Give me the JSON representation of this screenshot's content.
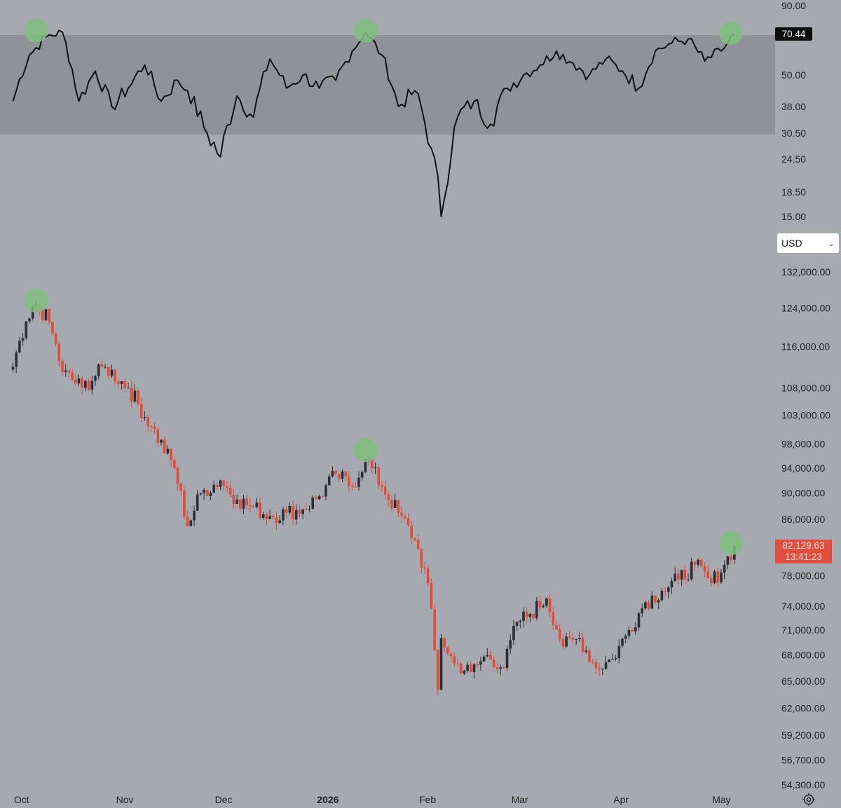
{
  "currency_select": {
    "value": "USD"
  },
  "rsi_badge": "70.44",
  "price_badge": {
    "price": "82,129.63",
    "countdown": "13:41:23"
  },
  "colors": {
    "background": "#a7a9b0",
    "rsi_band": "#8f9299",
    "rsi_line": "#111111",
    "candle_up": "#2b2e35",
    "candle_down": "#e04b3a",
    "highlight_circle": "#7fbf7f"
  },
  "icons": {
    "settings": "gear-icon",
    "dropdown": "chevron-down-icon"
  },
  "chart_data": [
    {
      "type": "line",
      "title": "",
      "ylim": [
        15,
        90
      ],
      "y_ticks": [
        "90.00",
        "50.00",
        "38.00",
        "30.50",
        "24.50",
        "18.50",
        "15.00"
      ],
      "band": [
        30.5,
        70
      ],
      "grid": false,
      "x_start": "2025-09-29",
      "x": [
        "2025-09-29",
        "2025-10-04",
        "2025-10-09",
        "2025-10-14",
        "2025-10-19",
        "2025-10-24",
        "2025-10-29",
        "2025-11-03",
        "2025-11-08",
        "2025-11-13",
        "2025-11-18",
        "2025-11-21",
        "2025-11-26",
        "2025-12-01",
        "2025-12-06",
        "2025-12-11",
        "2025-12-16",
        "2025-12-21",
        "2025-12-26",
        "2025-12-31",
        "2026-01-05",
        "2026-01-10",
        "2026-01-14",
        "2026-01-19",
        "2026-01-24",
        "2026-01-29",
        "2026-02-03",
        "2026-02-06",
        "2026-02-11",
        "2026-02-16",
        "2026-02-21",
        "2026-02-26",
        "2026-03-03",
        "2026-03-08",
        "2026-03-13",
        "2026-03-18",
        "2026-03-23",
        "2026-03-28",
        "2026-04-02",
        "2026-04-07",
        "2026-04-12",
        "2026-04-17",
        "2026-04-22",
        "2026-04-27",
        "2026-05-02",
        "2026-05-06"
      ],
      "series": [
        {
          "values": [
            40,
            60,
            69,
            72,
            40,
            52,
            38,
            45,
            55,
            40,
            48,
            44,
            32,
            25,
            42,
            35,
            58,
            45,
            50,
            45,
            48,
            62,
            72,
            60,
            38,
            44,
            27,
            15,
            35,
            40,
            33,
            45,
            50,
            55,
            62,
            56,
            50,
            58,
            52,
            45,
            62,
            66,
            68,
            57,
            62,
            70.44
          ]
        }
      ],
      "markers": [
        "2025-10-06",
        "2026-01-14",
        "2026-05-05"
      ]
    },
    {
      "type": "candlestick",
      "title": "",
      "ylim": [
        54300,
        132000
      ],
      "y_ticks": [
        "132,000.00",
        "124,000.00",
        "116,000.00",
        "108,000.00",
        "103,000.00",
        "98,000.00",
        "94,000.00",
        "90,000.00",
        "86,000.00",
        "78,000.00",
        "74,000.00",
        "71,000.00",
        "68,000.00",
        "65,000.00",
        "62,000.00",
        "59,200.00",
        "56,700.00",
        "54,300.00"
      ],
      "x_labels": [
        "Oct",
        "Nov",
        "Dec",
        "2026",
        "Feb",
        "Mar",
        "Apr",
        "May"
      ],
      "x": [
        "2025-09-29",
        "2025-10-06",
        "2025-10-10",
        "2025-10-14",
        "2025-10-20",
        "2025-10-27",
        "2025-11-03",
        "2025-11-10",
        "2025-11-17",
        "2025-11-21",
        "2025-11-25",
        "2025-12-01",
        "2025-12-06",
        "2025-12-10",
        "2025-12-16",
        "2025-12-21",
        "2025-12-26",
        "2025-12-31",
        "2026-01-05",
        "2026-01-10",
        "2026-01-14",
        "2026-01-19",
        "2026-01-24",
        "2026-01-29",
        "2026-02-02",
        "2026-02-05",
        "2026-02-06",
        "2026-02-10",
        "2026-02-15",
        "2026-02-20",
        "2026-02-25",
        "2026-03-01",
        "2026-03-05",
        "2026-03-10",
        "2026-03-15",
        "2026-03-20",
        "2026-03-25",
        "2026-03-30",
        "2026-04-04",
        "2026-04-09",
        "2026-04-14",
        "2026-04-19",
        "2026-04-24",
        "2026-04-29",
        "2026-05-03",
        "2026-05-06"
      ],
      "series": [
        {
          "name": "close",
          "values": [
            112000,
            125000,
            121000,
            111000,
            108000,
            112000,
            108000,
            101000,
            94000,
            85000,
            90000,
            92000,
            89000,
            88000,
            86500,
            87000,
            87500,
            89500,
            93000,
            91000,
            95500,
            91000,
            87000,
            83000,
            77000,
            64000,
            70000,
            67000,
            66000,
            68000,
            66500,
            72000,
            73000,
            75000,
            69000,
            70000,
            66500,
            67500,
            71000,
            74500,
            76000,
            77500,
            79500,
            77000,
            79500,
            82129.63
          ]
        }
      ],
      "markers": [
        "2025-10-06",
        "2026-01-14",
        "2026-05-05"
      ],
      "annotations": [
        "82,129.63",
        "13:41:23"
      ]
    }
  ]
}
